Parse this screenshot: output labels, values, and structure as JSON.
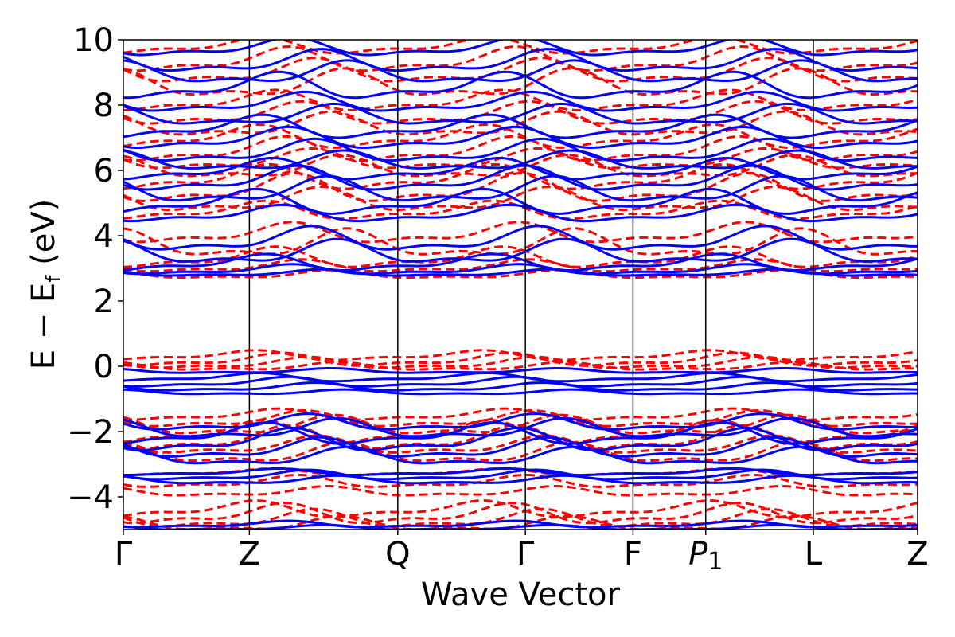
{
  "chart_data": {
    "type": "line",
    "title": "",
    "xlabel": "Wave Vector",
    "ylabel": "E − E_f (eV)",
    "ylabel_main": "E − E",
    "ylabel_sub": "f",
    "ylabel_tail": " (eV)",
    "ylim": [
      -5,
      10
    ],
    "xlim": [
      0,
      1
    ],
    "grid": false,
    "legend": "none",
    "yticks": [
      -4,
      -2,
      0,
      2,
      4,
      6,
      8,
      10
    ],
    "ytick_labels": [
      "−4",
      "−2",
      "0",
      "2",
      "4",
      "6",
      "8",
      "10"
    ],
    "kpoints": [
      {
        "label": "Γ",
        "pos": 0.0
      },
      {
        "label": "Z",
        "pos": 0.1587
      },
      {
        "label": "Q",
        "pos": 0.3455
      },
      {
        "label": "Γ",
        "pos": 0.5062
      },
      {
        "label": "F",
        "pos": 0.6417
      },
      {
        "label": "P",
        "sub": "1",
        "italic": true,
        "pos": 0.7332
      },
      {
        "label": "L",
        "pos": 0.8687
      },
      {
        "label": "Z",
        "pos": 1.0
      }
    ],
    "series": [
      {
        "style": "dashed",
        "color": "#ff0000",
        "bands": [
          {
            "base": -4.85,
            "amp": 0.18,
            "ph": 0.3
          },
          {
            "base": -4.7,
            "amp": 0.22,
            "ph": 1.1
          },
          {
            "base": -4.55,
            "amp": 0.25,
            "ph": 2.0
          },
          {
            "base": -4.4,
            "amp": 0.2,
            "ph": 2.9
          },
          {
            "base": -3.85,
            "amp": 0.12,
            "ph": 0.7
          },
          {
            "base": -3.55,
            "amp": 0.15,
            "ph": 1.6
          },
          {
            "base": -3.25,
            "amp": 0.08,
            "ph": 2.4
          },
          {
            "base": -2.7,
            "amp": 0.25,
            "ph": 0.2
          },
          {
            "base": -2.45,
            "amp": 0.22,
            "ph": 1.0
          },
          {
            "base": -2.25,
            "amp": 0.3,
            "ph": 1.9
          },
          {
            "base": -2.05,
            "amp": 0.28,
            "ph": 2.7
          },
          {
            "base": -1.85,
            "amp": 0.24,
            "ph": 0.5
          },
          {
            "base": -1.65,
            "amp": 0.2,
            "ph": 1.4
          },
          {
            "base": -1.5,
            "amp": 0.14,
            "ph": 2.2
          },
          {
            "base": -0.02,
            "amp": 0.1,
            "ph": 0.4
          },
          {
            "base": 0.08,
            "amp": 0.14,
            "ph": 1.3
          },
          {
            "base": 0.18,
            "amp": 0.16,
            "ph": 2.1
          },
          {
            "base": 0.32,
            "amp": 0.12,
            "ph": 2.9
          },
          {
            "base": 2.8,
            "amp": 0.1,
            "ph": 0.6
          },
          {
            "base": 3.05,
            "amp": 0.15,
            "ph": 1.5
          },
          {
            "base": 3.3,
            "amp": 0.25,
            "ph": 2.3
          },
          {
            "base": 3.7,
            "amp": 0.35,
            "ph": 0.1
          },
          {
            "base": 4.05,
            "amp": 0.25,
            "ph": 1.8
          },
          {
            "base": 4.75,
            "amp": 0.22,
            "ph": 2.6
          },
          {
            "base": 5.05,
            "amp": 0.3,
            "ph": 0.9
          },
          {
            "base": 5.4,
            "amp": 0.35,
            "ph": 1.7
          },
          {
            "base": 5.75,
            "amp": 0.3,
            "ph": 2.5
          },
          {
            "base": 6.05,
            "amp": 0.28,
            "ph": 0.3
          },
          {
            "base": 6.3,
            "amp": 0.25,
            "ph": 1.2
          },
          {
            "base": 6.6,
            "amp": 0.3,
            "ph": 2.0
          },
          {
            "base": 7.0,
            "amp": 0.28,
            "ph": 2.8
          },
          {
            "base": 7.35,
            "amp": 0.3,
            "ph": 0.6
          },
          {
            "base": 7.7,
            "amp": 0.28,
            "ph": 1.5
          },
          {
            "base": 8.1,
            "amp": 0.25,
            "ph": 2.3
          },
          {
            "base": 8.6,
            "amp": 0.35,
            "ph": 0.2
          },
          {
            "base": 9.0,
            "amp": 0.3,
            "ph": 1.1
          },
          {
            "base": 9.35,
            "amp": 0.3,
            "ph": 1.9
          },
          {
            "base": 9.8,
            "amp": 0.2,
            "ph": 2.7
          }
        ]
      },
      {
        "style": "solid",
        "color": "#0000ff",
        "bands": [
          {
            "base": -4.95,
            "amp": 0.06,
            "ph": 0.8
          },
          {
            "base": -4.85,
            "amp": 0.08,
            "ph": 1.9
          },
          {
            "base": -3.5,
            "amp": 0.1,
            "ph": 0.4
          },
          {
            "base": -3.35,
            "amp": 0.12,
            "ph": 1.3
          },
          {
            "base": -3.25,
            "amp": 0.08,
            "ph": 2.2
          },
          {
            "base": -2.8,
            "amp": 0.22,
            "ph": 0.1
          },
          {
            "base": -2.55,
            "amp": 0.25,
            "ph": 0.9
          },
          {
            "base": -2.3,
            "amp": 0.28,
            "ph": 1.8
          },
          {
            "base": -2.1,
            "amp": 0.26,
            "ph": 2.6
          },
          {
            "base": -1.95,
            "amp": 0.24,
            "ph": 0.4
          },
          {
            "base": -1.75,
            "amp": 0.2,
            "ph": 1.3
          },
          {
            "base": -0.8,
            "amp": 0.06,
            "ph": 0.2
          },
          {
            "base": -0.65,
            "amp": 0.1,
            "ph": 1.1
          },
          {
            "base": -0.5,
            "amp": 0.12,
            "ph": 1.9
          },
          {
            "base": -0.35,
            "amp": 0.1,
            "ph": 2.8
          },
          {
            "base": -0.15,
            "amp": 0.06,
            "ph": 0.6
          },
          {
            "base": 2.85,
            "amp": 0.08,
            "ph": 0.9
          },
          {
            "base": 2.95,
            "amp": 0.12,
            "ph": 1.8
          },
          {
            "base": 3.15,
            "amp": 0.2,
            "ph": 2.6
          },
          {
            "base": 3.45,
            "amp": 0.3,
            "ph": 0.4
          },
          {
            "base": 3.85,
            "amp": 0.3,
            "ph": 1.2
          },
          {
            "base": 4.65,
            "amp": 0.2,
            "ph": 2.1
          },
          {
            "base": 5.0,
            "amp": 0.3,
            "ph": 2.9
          },
          {
            "base": 5.35,
            "amp": 0.32,
            "ph": 0.7
          },
          {
            "base": 5.7,
            "amp": 0.3,
            "ph": 1.6
          },
          {
            "base": 6.0,
            "amp": 0.26,
            "ph": 2.4
          },
          {
            "base": 6.25,
            "amp": 0.24,
            "ph": 0.2
          },
          {
            "base": 6.55,
            "amp": 0.28,
            "ph": 1.1
          },
          {
            "base": 6.95,
            "amp": 0.26,
            "ph": 1.9
          },
          {
            "base": 7.3,
            "amp": 0.28,
            "ph": 2.7
          },
          {
            "base": 7.65,
            "amp": 0.26,
            "ph": 0.5
          },
          {
            "base": 8.05,
            "amp": 0.24,
            "ph": 1.4
          },
          {
            "base": 8.55,
            "amp": 0.32,
            "ph": 2.2
          },
          {
            "base": 8.95,
            "amp": 0.28,
            "ph": 0.1
          },
          {
            "base": 9.3,
            "amp": 0.28,
            "ph": 0.9
          },
          {
            "base": 9.75,
            "amp": 0.22,
            "ph": 1.8
          }
        ]
      }
    ]
  }
}
